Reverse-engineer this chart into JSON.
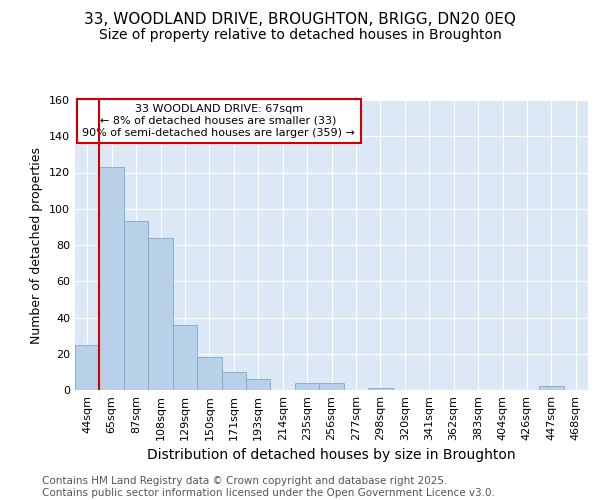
{
  "title_line1": "33, WOODLAND DRIVE, BROUGHTON, BRIGG, DN20 0EQ",
  "title_line2": "Size of property relative to detached houses in Broughton",
  "xlabel": "Distribution of detached houses by size in Broughton",
  "ylabel": "Number of detached properties",
  "categories": [
    "44sqm",
    "65sqm",
    "87sqm",
    "108sqm",
    "129sqm",
    "150sqm",
    "171sqm",
    "193sqm",
    "214sqm",
    "235sqm",
    "256sqm",
    "277sqm",
    "298sqm",
    "320sqm",
    "341sqm",
    "362sqm",
    "383sqm",
    "404sqm",
    "426sqm",
    "447sqm",
    "468sqm"
  ],
  "values": [
    25,
    123,
    93,
    84,
    36,
    18,
    10,
    6,
    0,
    4,
    4,
    0,
    1,
    0,
    0,
    0,
    0,
    0,
    0,
    2,
    0
  ],
  "bar_color": "#b8d0e8",
  "bar_edge_color": "#7aaaca",
  "red_line_x": 1,
  "ylim": [
    0,
    160
  ],
  "yticks": [
    0,
    20,
    40,
    60,
    80,
    100,
    120,
    140,
    160
  ],
  "annotation_box_text": "33 WOODLAND DRIVE: 67sqm\n← 8% of detached houses are smaller (33)\n90% of semi-detached houses are larger (359) →",
  "annotation_box_color": "#ffffff",
  "annotation_box_edgecolor": "#cc0000",
  "footer_text": "Contains HM Land Registry data © Crown copyright and database right 2025.\nContains public sector information licensed under the Open Government Licence v3.0.",
  "plot_bg_color": "#dce8f5",
  "fig_bg_color": "#ffffff",
  "grid_color": "#ffffff",
  "title_fontsize": 11,
  "subtitle_fontsize": 10,
  "xlabel_fontsize": 10,
  "ylabel_fontsize": 9,
  "tick_fontsize": 8,
  "footer_fontsize": 7.5,
  "ann_fontsize": 8
}
